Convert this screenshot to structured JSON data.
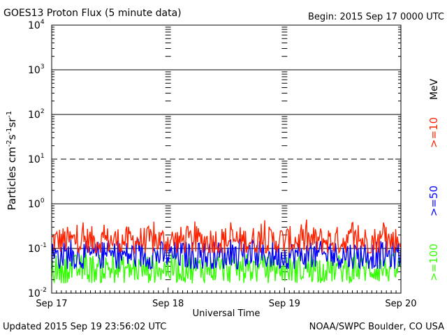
{
  "chart_data": {
    "type": "line",
    "title": "GOES13 Proton Flux (5 minute data)",
    "begin_label": "Begin: 2015 Sep 17 0000 UTC",
    "xlabel": "Universal Time",
    "ylabel": "Particles cm",
    "ylabel_exp1": "-2",
    "ylabel_mid1": "s",
    "ylabel_exp2": "-1",
    "ylabel_mid2": "sr",
    "ylabel_exp3": "-1",
    "yscale": "log",
    "ylim_exp": [
      -2,
      4
    ],
    "y_ticks": [
      {
        "base": "10",
        "exp": "-2",
        "value": -2
      },
      {
        "base": "10",
        "exp": "-1",
        "value": -1
      },
      {
        "base": "10",
        "exp": "0",
        "value": 0
      },
      {
        "base": "10",
        "exp": "1",
        "value": 1
      },
      {
        "base": "10",
        "exp": "2",
        "value": 2
      },
      {
        "base": "10",
        "exp": "3",
        "value": 3
      },
      {
        "base": "10",
        "exp": "4",
        "value": 4
      }
    ],
    "x_ticks": [
      {
        "label": "Sep 17",
        "value": 0
      },
      {
        "label": "Sep 18",
        "value": 1
      },
      {
        "label": "Sep 19",
        "value": 2
      },
      {
        "label": "Sep 20",
        "value": 3
      }
    ],
    "xlim": [
      0,
      3
    ],
    "threshold_dashed": 1,
    "unit_label": "MeV",
    "series": [
      {
        "name": ">=10",
        "color": "#ff2200",
        "typical": 0.15,
        "min": 0.08,
        "max": 0.45
      },
      {
        "name": ">=50",
        "color": "#0000ff",
        "typical": 0.07,
        "min": 0.035,
        "max": 0.17
      },
      {
        "name": ">=100",
        "color": "#33ff00",
        "typical": 0.035,
        "min": 0.015,
        "max": 0.09
      }
    ]
  },
  "footer": {
    "updated": "Updated 2015 Sep 19 23:56:02 UTC",
    "source": "NOAA/SWPC Boulder, CO USA"
  }
}
